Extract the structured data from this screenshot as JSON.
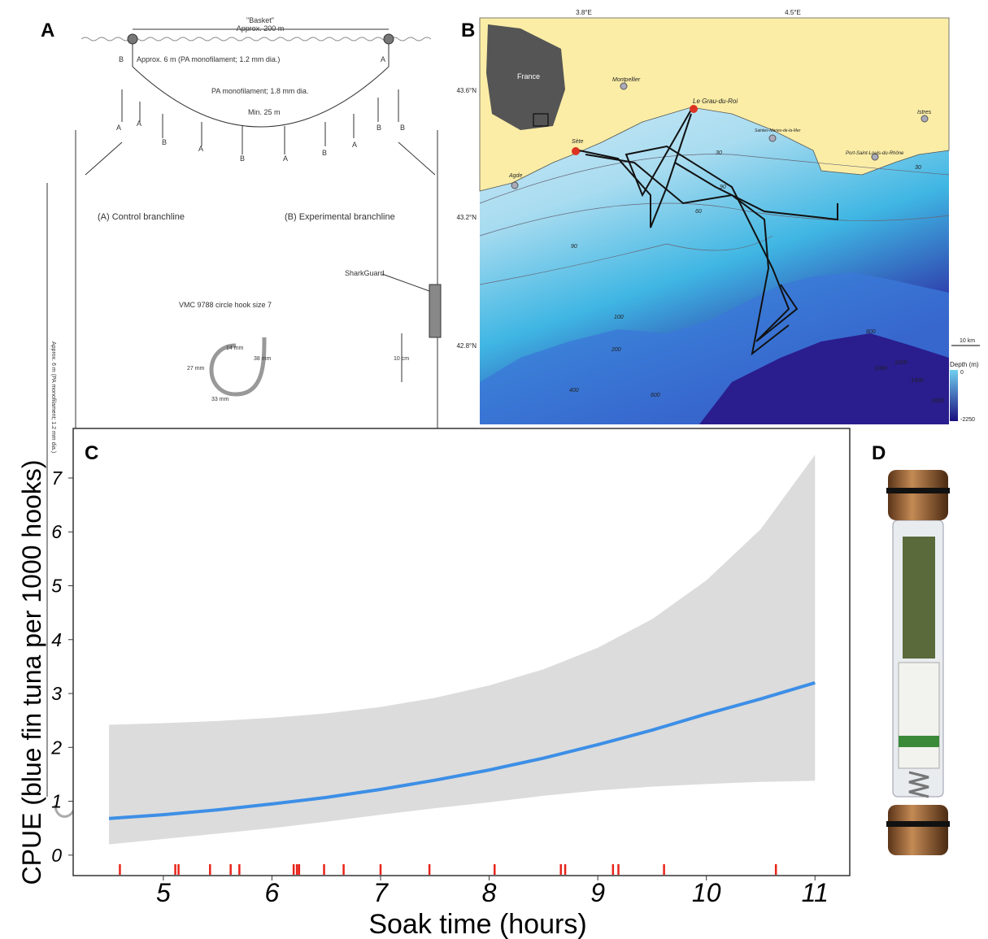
{
  "panel_labels": [
    "A",
    "B",
    "C",
    "D"
  ],
  "diagram": {
    "basket": "\"Basket\"",
    "basket_length": "Approx. 200 m",
    "float_labels": [
      "B",
      "A"
    ],
    "snood": "Approx. 6 m (PA monofilament; 1.2 mm dia.)",
    "mainline": "PA monofilament; 1.8 mm dia.",
    "spacing": "Min. 25 m",
    "hook_labels": [
      "A",
      "A",
      "B",
      "A",
      "B",
      "A",
      "B",
      "A",
      "B",
      "B"
    ],
    "control": "(A) Control branchline",
    "experimental": "(B) Experimental branchline",
    "branchline_length": "Approx. 6 m (PA monofilament; 1.2 mm dia.)",
    "sharkguard": "SharkGuard",
    "hook": "VMC 9788 circle hook size 7",
    "hook_dims": [
      "14 mm",
      "27 mm",
      "38 mm",
      "33 mm"
    ],
    "scale": "10 cm"
  },
  "map": {
    "lon_labels": [
      "3.8°E",
      "4.5°E"
    ],
    "lat_labels": [
      "43.6°N",
      "43.2°N",
      "42.8°N"
    ],
    "inset": "France",
    "places": [
      "Montpellier",
      "Le Grau-du-Roi",
      "Sète",
      "Agde",
      "Saintes-Maries-de-la-Mer",
      "Port-Saint-Louis-du-Rhône",
      "Istres"
    ],
    "contour_labels": [
      "30",
      "30",
      "60",
      "90",
      "90",
      "100",
      "200",
      "400",
      "600",
      "800",
      "1000",
      "1200",
      "1400",
      "1600"
    ],
    "scale_bar": "10 km",
    "legend_title": "Depth (m)",
    "legend_ticks": [
      "0",
      "-2250"
    ]
  },
  "chart_data": {
    "type": "line",
    "x_label": "Soak time (hours)",
    "y_label": "CPUE (blue fin tuna per 1000 hooks)",
    "x": [
      4.5,
      5,
      5.5,
      6,
      6.5,
      7,
      7.5,
      8,
      8.5,
      9,
      9.5,
      10,
      10.5,
      11
    ],
    "series": [
      {
        "color": "#3d8fe6",
        "values": [
          0.68,
          0.75,
          0.84,
          0.95,
          1.07,
          1.22,
          1.39,
          1.58,
          1.8,
          2.05,
          2.32,
          2.62,
          2.9,
          3.2
        ]
      }
    ],
    "ribbon": {
      "color": "#dcdcdc",
      "lower": [
        0.2,
        0.3,
        0.4,
        0.5,
        0.62,
        0.75,
        0.87,
        0.98,
        1.1,
        1.2,
        1.27,
        1.32,
        1.36,
        1.38
      ],
      "upper": [
        2.42,
        2.45,
        2.49,
        2.55,
        2.63,
        2.75,
        2.92,
        3.15,
        3.45,
        3.85,
        4.38,
        5.1,
        6.05,
        7.43
      ]
    },
    "rug": {
      "color": "#e8231a",
      "x": [
        4.6,
        5.11,
        5.14,
        5.43,
        5.62,
        5.7,
        6.2,
        6.23,
        6.25,
        6.48,
        6.66,
        7.0,
        7.45,
        8.05,
        8.66,
        8.7,
        9.14,
        9.19,
        9.61,
        10.64
      ]
    },
    "xlim": [
      4.17,
      11.32
    ],
    "ylim": [
      -0.38,
      7.92
    ],
    "xticks": [
      5,
      6,
      7,
      8,
      9,
      10,
      11
    ],
    "yticks": [
      0,
      1,
      2,
      3,
      4,
      5,
      6,
      7
    ]
  }
}
